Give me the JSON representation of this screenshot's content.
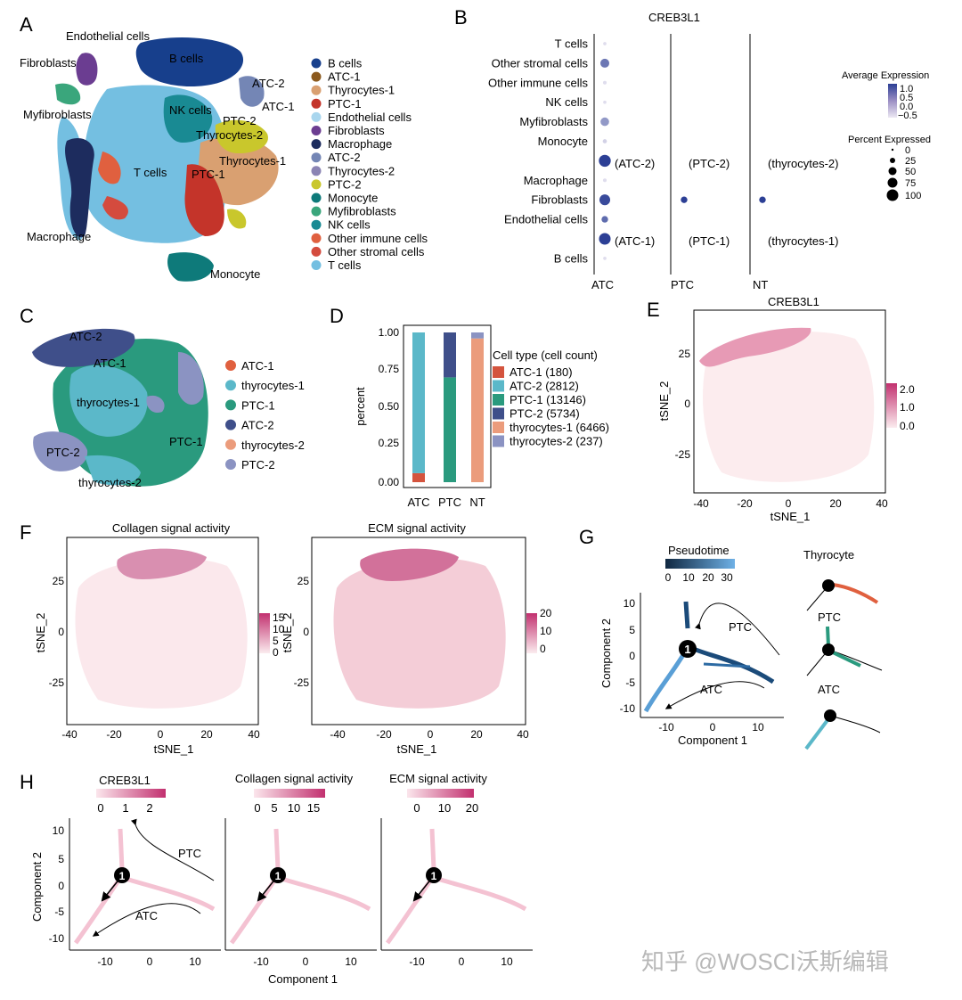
{
  "panels": {
    "A": {
      "letter": "A",
      "labels": [
        "Endothelial cells",
        "B cells",
        "Fibroblasts",
        "ATC-2",
        "ATC-1",
        "Myfibroblasts",
        "NK cells",
        "PTC-2",
        "Thyrocytes-2",
        "Thyrocytes-1",
        "T cells",
        "PTC-1",
        "Macrophage",
        "Monocyte"
      ],
      "legend": [
        [
          "B cells",
          "#173f8c"
        ],
        [
          "ATC-1",
          "#8c5a1e"
        ],
        [
          "Thyrocytes-1",
          "#d9a071"
        ],
        [
          "PTC-1",
          "#c4342a"
        ],
        [
          "Endothelial cells",
          "#a9d6ee"
        ],
        [
          "Fibroblasts",
          "#6b3d91"
        ],
        [
          "Macrophage",
          "#1d2c5e"
        ],
        [
          "ATC-2",
          "#7486b5"
        ],
        [
          "Thyrocytes-2",
          "#8b84b4"
        ],
        [
          "PTC-2",
          "#c9c72c"
        ],
        [
          "Monocyte",
          "#0e7a7a"
        ],
        [
          "Myfibroblasts",
          "#3aa67c"
        ],
        [
          "NK cells",
          "#198a93"
        ],
        [
          "Other immune cells",
          "#e0603f"
        ],
        [
          "Other stromal cells",
          "#d44b3e"
        ],
        [
          "T cells",
          "#74bfe1"
        ]
      ]
    },
    "B": {
      "letter": "B",
      "title": "CREB3L1",
      "rows": [
        "T cells",
        "Other stromal cells",
        "Other immune cells",
        "NK cells",
        "Myfibroblasts",
        "Monocyte",
        "(ATC-2)",
        "Macrophage",
        "Fibroblasts",
        "Endothelial cells",
        "(ATC-1)",
        "B cells"
      ],
      "groups": [
        "ATC",
        "PTC",
        "NT"
      ],
      "annot": [
        [
          "(ATC-2)",
          "(PTC-2)",
          "(thyrocytes-2)"
        ],
        [
          "(ATC-1)",
          "(PTC-1)",
          "(thyrocytes-1)"
        ]
      ],
      "legend_expr_title": "Average Expression",
      "legend_expr_ticks": [
        "1.0",
        "0.5",
        "0.0",
        "−0.5"
      ],
      "legend_pct_title": "Percent Expressed",
      "legend_pct_ticks": [
        "0",
        "25",
        "50",
        "75",
        "100"
      ]
    },
    "C": {
      "letter": "C",
      "labels": [
        "ATC-2",
        "ATC-1",
        "thyrocytes-1",
        "PTC-1",
        "PTC-2",
        "thyrocytes-2"
      ],
      "legend": [
        [
          "ATC-1",
          "#e0603f"
        ],
        [
          "thyrocytes-1",
          "#5bb8c9"
        ],
        [
          "PTC-1",
          "#2a9a7e"
        ],
        [
          "ATC-2",
          "#3f4f8a"
        ],
        [
          "thyrocytes-2",
          "#eb9c7c"
        ],
        [
          "PTC-2",
          "#8b93c2"
        ]
      ]
    },
    "D": {
      "letter": "D",
      "ylabel": "percent",
      "yticks": [
        "0.00",
        "0.25",
        "0.50",
        "0.75",
        "1.00"
      ],
      "categories": [
        "ATC",
        "PTC",
        "NT"
      ],
      "legend_title": "Cell type (cell count)"
    },
    "E": {
      "letter": "E",
      "title": "CREB3L1",
      "xlabel": "tSNE_1",
      "ylabel": "tSNE_2",
      "xticks": [
        "-40",
        "-20",
        "0",
        "20",
        "40"
      ],
      "yticks": [
        "25",
        "0",
        "-25"
      ],
      "scale": [
        "2.0",
        "1.0",
        "0.0"
      ]
    },
    "F": {
      "letter": "F",
      "title1": "Collagen signal activity",
      "title2": "ECM signal activity",
      "xlabel": "tSNE_1",
      "ylabel": "tSNE_2",
      "xticks": [
        "-40",
        "-20",
        "0",
        "20",
        "40"
      ],
      "yticks": [
        "25",
        "0",
        "-25"
      ],
      "scale1": [
        "15",
        "10",
        "5",
        "0"
      ],
      "scale2": [
        "20",
        "10",
        "0"
      ]
    },
    "G": {
      "letter": "G",
      "legend_title": "Pseudotime",
      "legend_ticks": [
        "0",
        "10",
        "20",
        "30"
      ],
      "xlabel": "Component 1",
      "ylabel": "Component 2",
      "xticks": [
        "-10",
        "0",
        "10"
      ],
      "yticks": [
        "10",
        "5",
        "0",
        "-5",
        "-10"
      ],
      "arrow_labels": [
        "PTC",
        "ATC"
      ],
      "node": "1",
      "mini": [
        "Thyrocyte",
        "PTC",
        "ATC"
      ]
    },
    "H": {
      "letter": "H",
      "titles": [
        "CREB3L1",
        "Collagen signal activity",
        "ECM signal activity"
      ],
      "scale_ticks": [
        [
          "0",
          "1",
          "2"
        ],
        [
          "0",
          "5",
          "10",
          "15"
        ],
        [
          "0",
          "10",
          "20"
        ]
      ],
      "xlabel": "Component 1",
      "ylabel": "Component 2",
      "xticks": [
        "-10",
        "0",
        "10"
      ],
      "yticks": [
        "10",
        "5",
        "0",
        "-5",
        "-10"
      ],
      "arrow_labels": [
        "PTC",
        "ATC"
      ],
      "node": "1"
    }
  },
  "watermark": "知乎 @WOSCI沃斯编辑",
  "chart_data": [
    {
      "panel": "B",
      "type": "scatter",
      "title": "CREB3L1",
      "note": "dot plot; size = percent expressed, color = average expression",
      "rows": [
        "T cells",
        "Other stromal cells",
        "Other immune cells",
        "NK cells",
        "Myfibroblasts",
        "Monocyte",
        "(ATC-2)",
        "Macrophage",
        "Fibroblasts",
        "Endothelial cells",
        "(ATC-1)",
        "B cells"
      ],
      "columns": [
        "ATC",
        "PTC",
        "NT"
      ],
      "points": [
        {
          "col": "ATC",
          "row": "T cells",
          "pct": 2,
          "expr": -0.4
        },
        {
          "col": "ATC",
          "row": "Other stromal cells",
          "pct": 45,
          "expr": 0.5
        },
        {
          "col": "ATC",
          "row": "Other immune cells",
          "pct": 3,
          "expr": -0.4
        },
        {
          "col": "ATC",
          "row": "NK cells",
          "pct": 2,
          "expr": -0.4
        },
        {
          "col": "ATC",
          "row": "Myfibroblasts",
          "pct": 40,
          "expr": 0.2
        },
        {
          "col": "ATC",
          "row": "Monocyte",
          "pct": 5,
          "expr": -0.3
        },
        {
          "col": "ATC",
          "row": "(ATC-2)",
          "pct": 90,
          "expr": 1.0
        },
        {
          "col": "ATC",
          "row": "Macrophage",
          "pct": 3,
          "expr": -0.4
        },
        {
          "col": "ATC",
          "row": "Fibroblasts",
          "pct": 70,
          "expr": 0.9
        },
        {
          "col": "ATC",
          "row": "Endothelial cells",
          "pct": 20,
          "expr": 0.6
        },
        {
          "col": "ATC",
          "row": "(ATC-1)",
          "pct": 85,
          "expr": 1.0
        },
        {
          "col": "ATC",
          "row": "B cells",
          "pct": 2,
          "expr": -0.4
        },
        {
          "col": "PTC",
          "row": "Fibroblasts",
          "pct": 20,
          "expr": 1.0
        },
        {
          "col": "NT",
          "row": "Fibroblasts",
          "pct": 20,
          "expr": 1.0
        }
      ],
      "legend_expr": [
        "1.0",
        "0.5",
        "0.0",
        "-0.5"
      ],
      "legend_pct": [
        "0",
        "25",
        "50",
        "75",
        "100"
      ]
    },
    {
      "panel": "D",
      "type": "bar",
      "stacked": true,
      "ylabel": "percent",
      "ylim": [
        0,
        1
      ],
      "categories": [
        "ATC",
        "PTC",
        "NT"
      ],
      "series": [
        {
          "name": "ATC-1 (180)",
          "color": "#d4543e",
          "values": [
            0.06,
            0,
            0
          ]
        },
        {
          "name": "ATC-2 (2812)",
          "color": "#5bb8c9",
          "values": [
            0.94,
            0,
            0
          ]
        },
        {
          "name": "PTC-1 (13146)",
          "color": "#2a9a7e",
          "values": [
            0,
            0.7,
            0
          ]
        },
        {
          "name": "PTC-2 (5734)",
          "color": "#3f4f8a",
          "values": [
            0,
            0.3,
            0
          ]
        },
        {
          "name": "thyrocytes-1 (6466)",
          "color": "#eb9c7c",
          "values": [
            0,
            0,
            0.96
          ]
        },
        {
          "name": "thyrocytes-2 (237)",
          "color": "#8b93c2",
          "values": [
            0,
            0,
            0.04
          ]
        }
      ]
    }
  ]
}
